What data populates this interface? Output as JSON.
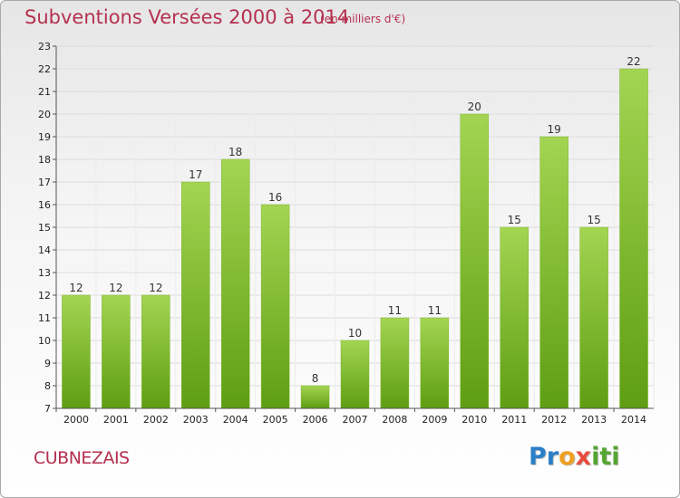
{
  "header": {
    "title": "Subventions Versées 2000 à 2014",
    "subtitle": "(en milliers d'€)"
  },
  "footer": {
    "commune": "CUBNEZAIS",
    "logo_text": "Proxiti"
  },
  "colors": {
    "title": "#b5304f",
    "bar_light": "#9dd04a",
    "bar_dark": "#5e9e12",
    "grid": "#dcdcdc",
    "axis": "#555555"
  },
  "chart_data": {
    "type": "bar",
    "categories": [
      "2000",
      "2001",
      "2002",
      "2003",
      "2004",
      "2005",
      "2006",
      "2007",
      "2008",
      "2009",
      "2010",
      "2011",
      "2012",
      "2013",
      "2014"
    ],
    "values": [
      12,
      12,
      12,
      17,
      18,
      16,
      8,
      10,
      11,
      11,
      20,
      15,
      19,
      15,
      22
    ],
    "title": "Subventions Versées 2000 à 2014",
    "subtitle": "(en milliers d'€)",
    "xlabel": "",
    "ylabel": "",
    "ylim": [
      7,
      23
    ],
    "yticks": [
      7,
      8,
      9,
      10,
      11,
      12,
      13,
      14,
      15,
      16,
      17,
      18,
      19,
      20,
      21,
      22,
      23
    ],
    "grid": true,
    "legend": "none"
  }
}
